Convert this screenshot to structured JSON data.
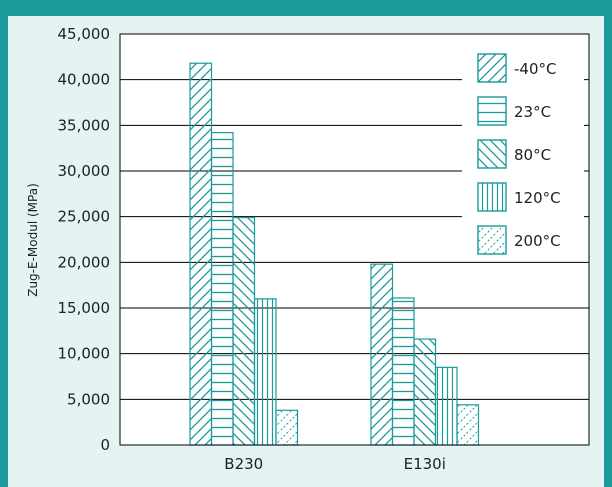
{
  "chart_data": {
    "type": "bar",
    "ylabel": "Zug-E-Modul (MPa)",
    "xlabel": "",
    "ylim": [
      0,
      45000
    ],
    "yticks": [
      0,
      5000,
      10000,
      15000,
      20000,
      25000,
      30000,
      35000,
      40000,
      45000
    ],
    "ytick_labels": [
      "0",
      "5,000",
      "10,000",
      "15,000",
      "20,000",
      "25,000",
      "30,000",
      "35,000",
      "40,000",
      "45,000"
    ],
    "grid": true,
    "legend_position": "top-right",
    "categories": [
      "B230",
      "E130i"
    ],
    "series": [
      {
        "name": "-40°C",
        "pattern": "diag-right",
        "values": [
          41800,
          19800
        ]
      },
      {
        "name": "23°C",
        "pattern": "horizontal",
        "values": [
          34200,
          16100
        ]
      },
      {
        "name": "80°C",
        "pattern": "diag-left",
        "values": [
          24900,
          11600
        ]
      },
      {
        "name": "120°C",
        "pattern": "vertical",
        "values": [
          16000,
          8500
        ]
      },
      {
        "name": "200°C",
        "pattern": "dotted",
        "values": [
          3800,
          4400
        ]
      }
    ],
    "colors": {
      "stroke": "#1a9a9a",
      "fill": "#e4f4f3",
      "grid": "#000000",
      "frame": "#1a9a9a"
    }
  }
}
